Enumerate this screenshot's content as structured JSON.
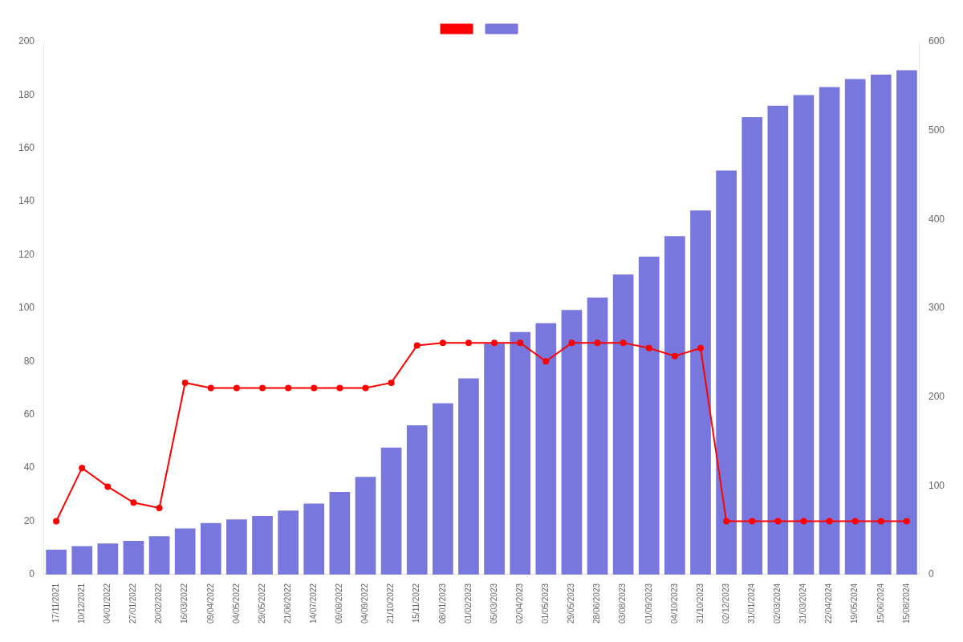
{
  "chart_data": {
    "type": "bar",
    "categories": [
      "17/11/2021",
      "10/12/2021",
      "04/01/2022",
      "27/01/2022",
      "20/02/2022",
      "16/03/2022",
      "09/04/2022",
      "04/05/2022",
      "29/05/2022",
      "21/06/2022",
      "14/07/2022",
      "09/08/2022",
      "04/09/2022",
      "21/10/2022",
      "15/11/2022",
      "08/01/2023",
      "01/02/2023",
      "05/03/2023",
      "02/04/2023",
      "01/05/2023",
      "29/05/2023",
      "28/06/2023",
      "03/08/2023",
      "01/09/2023",
      "04/10/2023",
      "31/10/2023",
      "02/12/2023",
      "31/01/2024",
      "02/03/2024",
      "31/03/2024",
      "22/04/2024",
      "19/05/2024",
      "15/06/2024",
      "15/08/2024"
    ],
    "series": [
      {
        "type": "line",
        "color": "#ff0000",
        "marker": "circle",
        "values": [
          20,
          40,
          33,
          27,
          25,
          72,
          70,
          70,
          70,
          70,
          70,
          70,
          70,
          72,
          86,
          87,
          87,
          87,
          87,
          80,
          87,
          87,
          87,
          85,
          82,
          85,
          20,
          20,
          20,
          20,
          20,
          20,
          20,
          20
        ]
      },
      {
        "type": "bar",
        "color": "#7777dd",
        "axis": "y2",
        "values": [
          28,
          32,
          35,
          38,
          43,
          52,
          58,
          62,
          66,
          72,
          80,
          93,
          110,
          143,
          168,
          193,
          221,
          260,
          273,
          283,
          298,
          312,
          338,
          358,
          381,
          410,
          455,
          515,
          528,
          540,
          549,
          558,
          563,
          568
        ]
      }
    ],
    "ylim": [
      0,
      200
    ],
    "yticks": [
      0,
      20,
      40,
      60,
      80,
      100,
      120,
      140,
      160,
      180,
      200
    ],
    "y2lim": [
      0,
      600
    ],
    "y2ticks": [
      0,
      100,
      200,
      300,
      400,
      500,
      600
    ],
    "grid": false,
    "legend": "top"
  }
}
